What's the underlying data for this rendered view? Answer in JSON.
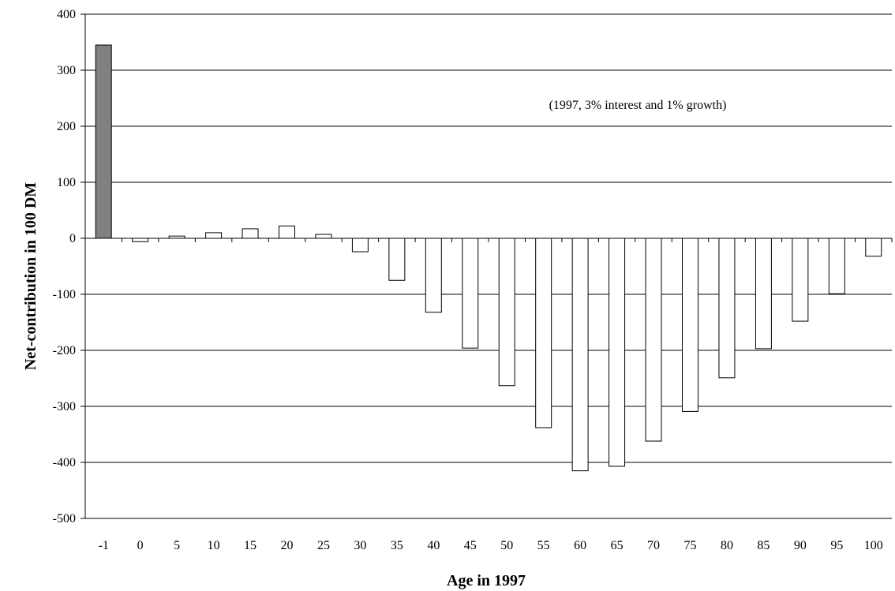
{
  "chart_data": {
    "type": "bar",
    "categories": [
      "-1",
      "0",
      "5",
      "10",
      "15",
      "20",
      "25",
      "30",
      "35",
      "40",
      "45",
      "50",
      "55",
      "60",
      "65",
      "70",
      "75",
      "80",
      "85",
      "90",
      "95",
      "100"
    ],
    "values": [
      345,
      -6,
      4,
      10,
      17,
      22,
      7,
      -24,
      -75,
      -132,
      -196,
      -263,
      -338,
      -415,
      -407,
      -362,
      -309,
      -249,
      -197,
      -148,
      -99,
      -32
    ],
    "highlighted_category": "-1",
    "title": "",
    "annotation": "(1997, 3% interest and 1% growth)",
    "xlabel": "Age in 1997",
    "ylabel": "Net-contribution in 100 DM",
    "ylim": [
      -500,
      400
    ],
    "yticks": [
      400,
      300,
      200,
      100,
      0,
      -100,
      -200,
      -300,
      -400,
      -500
    ],
    "grid": true,
    "legend": "none",
    "colors": {
      "highlight_bar": "#808080",
      "bar": "#ffffff",
      "bar_stroke": "#000000",
      "grid": "#000000"
    }
  }
}
